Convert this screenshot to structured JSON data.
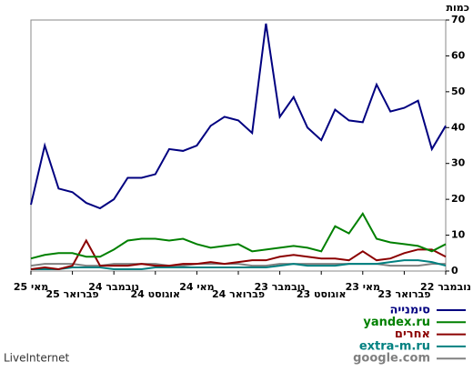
{
  "chart_data": {
    "type": "line",
    "y_axis_label": "כמות",
    "footer": "LiveInternet",
    "categories": [
      "מאי 25",
      null,
      null,
      "פברואר 25",
      null,
      null,
      "נובמבר 24",
      null,
      null,
      "אוגוסט 24",
      null,
      null,
      "מאי 24",
      null,
      null,
      "פברואר 24",
      null,
      null,
      "נובמבר 23",
      null,
      null,
      "אוגוסט 23",
      null,
      null,
      "מאי 23",
      null,
      null,
      "פברואר 23",
      null,
      null,
      "נובמבר 22"
    ],
    "ylim": [
      0,
      70
    ],
    "yticks": [
      0,
      10,
      20,
      30,
      40,
      50,
      60,
      70
    ],
    "series": [
      {
        "name": "סימנייה",
        "color": "#000080",
        "values": [
          18.5,
          35,
          23,
          22,
          19,
          17.5,
          20,
          26,
          26,
          27,
          34,
          33.5,
          35,
          40.5,
          43,
          42,
          38.5,
          69,
          43,
          48.5,
          40,
          36.5,
          45,
          42,
          41.5,
          52,
          44.5,
          45.5,
          47.5,
          34,
          40.5
        ]
      },
      {
        "name": "yandex.ru",
        "color": "#008000",
        "values": [
          3.5,
          4.5,
          5,
          5,
          4,
          4,
          6,
          8.5,
          9,
          9,
          8.5,
          9,
          7.5,
          6.5,
          7,
          7.5,
          5.5,
          6,
          6.5,
          7,
          6.5,
          5.5,
          12.5,
          10.5,
          16,
          9,
          8,
          7.5,
          7,
          5.5,
          7.5
        ]
      },
      {
        "name": "אחרים",
        "color": "#8b0000",
        "values": [
          0.5,
          1,
          0.5,
          1.5,
          8.5,
          1.5,
          1.5,
          1.5,
          2,
          1.5,
          1.5,
          2,
          2,
          2.5,
          2,
          2.5,
          3,
          3,
          4,
          4.5,
          4,
          3.5,
          3.5,
          3,
          5.5,
          3,
          3.5,
          5,
          6,
          6,
          4
        ]
      },
      {
        "name": "extra-m.ru",
        "color": "#008080",
        "values": [
          0.5,
          0.5,
          0.5,
          1,
          1,
          1,
          0.5,
          0.5,
          0.5,
          1,
          1,
          1,
          1,
          1,
          1,
          1,
          1,
          1,
          1.5,
          2,
          1.5,
          1.5,
          1.5,
          2,
          2,
          2,
          2.5,
          3,
          3,
          2.5,
          1.5
        ]
      },
      {
        "name": "google.com",
        "color": "#808080",
        "values": [
          1.5,
          2,
          2,
          2,
          1.5,
          1.5,
          2,
          2,
          2,
          2,
          1.5,
          1.5,
          2,
          2,
          2,
          2,
          1.5,
          1.5,
          2,
          2,
          2,
          2,
          2,
          2,
          2,
          2,
          1.5,
          1.5,
          1.5,
          2,
          2
        ]
      }
    ]
  }
}
